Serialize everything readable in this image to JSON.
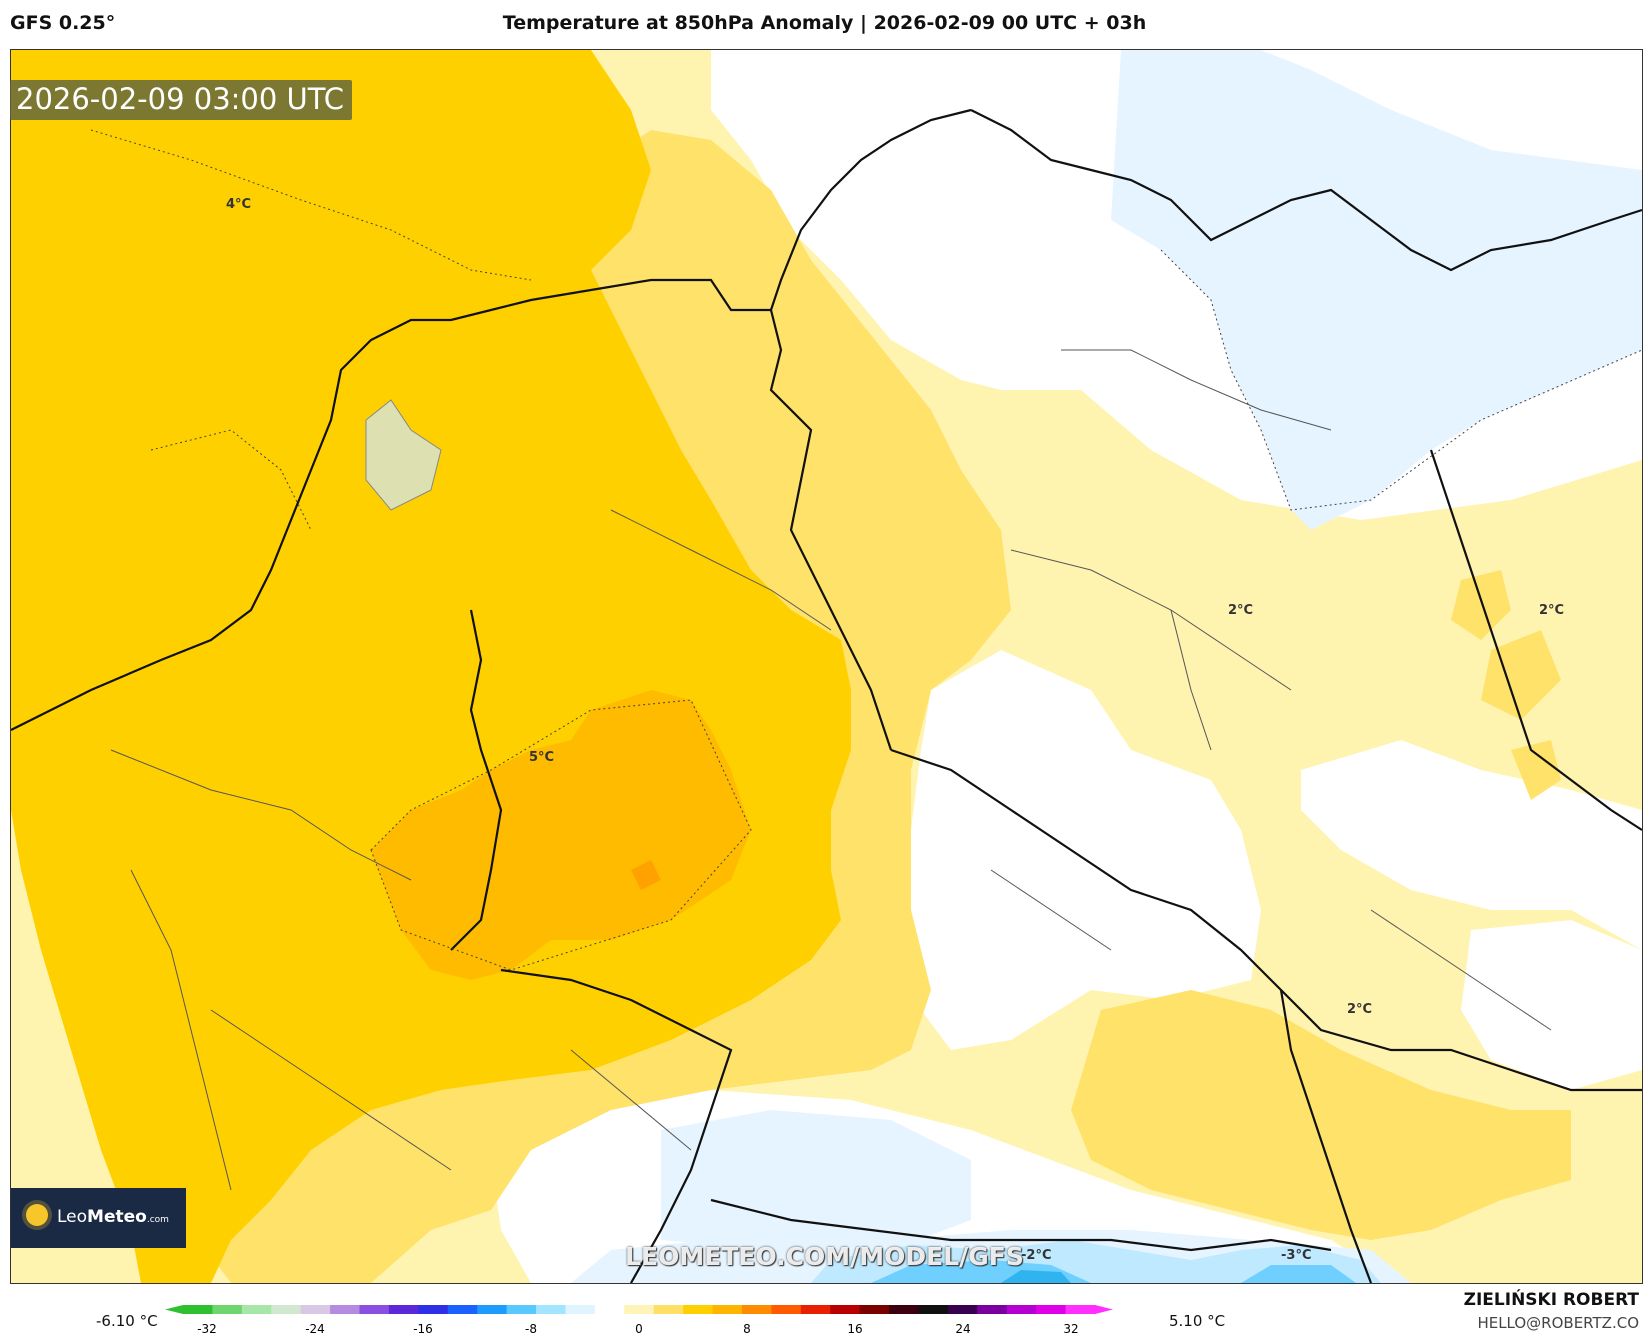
{
  "header": {
    "model": "GFS 0.25°",
    "title": "Temperature at 850hPa Anomaly | 2026-02-09 00 UTC + 03h"
  },
  "map": {
    "timestamp": "2026-02-09 03:00 UTC",
    "watermark": "LEOMETEO.COM/MODEL/GFS",
    "logo": {
      "prefix": "Leo",
      "bold": "Meteo",
      "domain": ".com"
    },
    "contour_labels": [
      "4°C",
      "5°C",
      "2°C",
      "2°C",
      "2°C",
      "-2°C",
      "-3°C"
    ]
  },
  "colorbar": {
    "min_label": "-6.10 °C",
    "max_label": "5.10 °C",
    "ticks": [
      "-32",
      "-24",
      "-16",
      "-8",
      "0",
      "8",
      "16",
      "24",
      "32"
    ],
    "colors": [
      "#2ec02e",
      "#6fd66f",
      "#a8e6a8",
      "#cfe8cf",
      "#d9c7e6",
      "#b48be0",
      "#8a4fe0",
      "#5a28d8",
      "#2f2fe6",
      "#1a62ff",
      "#1d9bff",
      "#58c8ff",
      "#a3e4ff",
      "#dff4ff",
      "#ffffff",
      "#fff4b8",
      "#ffe066",
      "#ffd000",
      "#ffb400",
      "#ff8c00",
      "#ff5a00",
      "#e82000",
      "#b80000",
      "#7a0000",
      "#3a0010",
      "#101010",
      "#3a0050",
      "#7a00a0",
      "#b400d0",
      "#e000e8",
      "#ff30ff"
    ]
  },
  "credit": {
    "name": "ZIELIŃSKI ROBERT",
    "email": "HELLO@ROBERTZ.CO"
  }
}
